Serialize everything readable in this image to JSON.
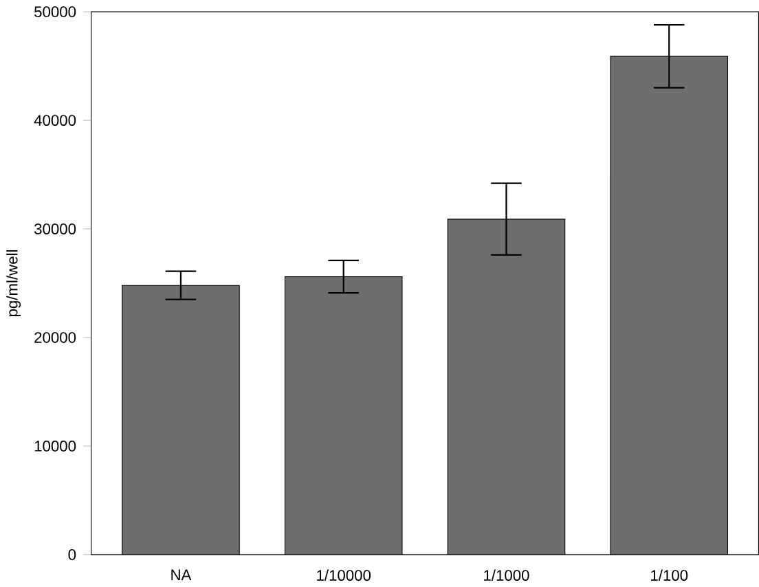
{
  "chart_data": {
    "type": "bar",
    "ylabel": "pg/ml/well",
    "categories": [
      "NA",
      "1/10000",
      "1/1000",
      "1/100"
    ],
    "values": [
      24800,
      25600,
      30900,
      45900
    ],
    "errors": [
      1300,
      1500,
      3300,
      2900
    ],
    "color": "#6e6e6e",
    "ylim": [
      0,
      50000
    ],
    "yticks": [
      0,
      10000,
      20000,
      30000,
      40000,
      50000
    ],
    "grid": false
  }
}
